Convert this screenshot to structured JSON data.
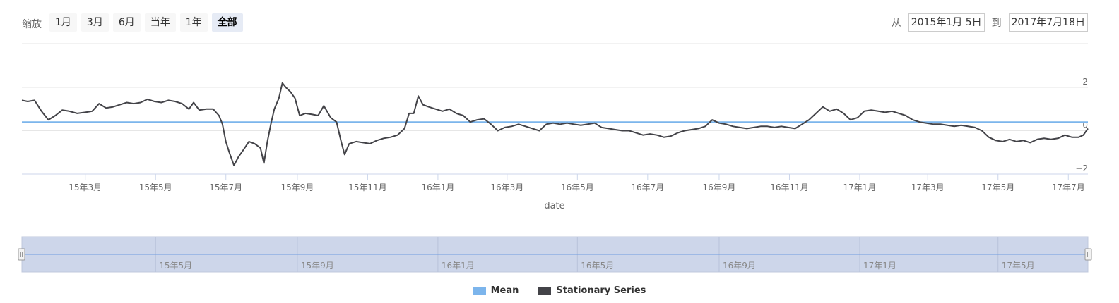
{
  "toolbar": {
    "zoom_label": "缩放",
    "zoom_buttons": [
      "1月",
      "3月",
      "6月",
      "当年",
      "1年",
      "全部"
    ],
    "active_zoom": "全部",
    "from_label": "从",
    "from_value": "2015年1月 5日",
    "to_label": "到",
    "to_value": "2017年7月18日"
  },
  "legend": {
    "mean_label": "Mean",
    "series_label": "Stationary Series"
  },
  "colors": {
    "mean": "#7cb5ec",
    "series": "#434348",
    "navigator_fill": "#cdd6ea",
    "navigator_line": "#6f9ce0"
  },
  "chart_data": {
    "type": "line",
    "xlabel": "date",
    "ylabel": "",
    "xlim": [
      "2015-01-05",
      "2017-07-18"
    ],
    "ylim": [
      -2,
      2
    ],
    "yticks": [
      2,
      0,
      -2
    ],
    "xticks": [
      {
        "date": "2015-03-01",
        "label": "15年3月"
      },
      {
        "date": "2015-05-01",
        "label": "15年5月"
      },
      {
        "date": "2015-07-01",
        "label": "15年7月"
      },
      {
        "date": "2015-09-01",
        "label": "15年9月"
      },
      {
        "date": "2015-11-01",
        "label": "15年11月"
      },
      {
        "date": "2016-01-01",
        "label": "16年1月"
      },
      {
        "date": "2016-03-01",
        "label": "16年3月"
      },
      {
        "date": "2016-05-01",
        "label": "16年5月"
      },
      {
        "date": "2016-07-01",
        "label": "16年7月"
      },
      {
        "date": "2016-09-01",
        "label": "16年9月"
      },
      {
        "date": "2016-11-01",
        "label": "16年11月"
      },
      {
        "date": "2017-01-01",
        "label": "17年1月"
      },
      {
        "date": "2017-03-01",
        "label": "17年3月"
      },
      {
        "date": "2017-05-01",
        "label": "17年5月"
      },
      {
        "date": "2017-07-01",
        "label": "17年7月"
      }
    ],
    "navigator_ticks": [
      {
        "date": "2015-05-01",
        "label": "15年5月"
      },
      {
        "date": "2015-09-01",
        "label": "15年9月"
      },
      {
        "date": "2016-01-01",
        "label": "16年1月"
      },
      {
        "date": "2016-05-01",
        "label": "16年5月"
      },
      {
        "date": "2016-09-01",
        "label": "16年9月"
      },
      {
        "date": "2017-01-01",
        "label": "17年1月"
      },
      {
        "date": "2017-05-01",
        "label": "17年5月"
      }
    ],
    "series": [
      {
        "name": "Mean",
        "values": [
          {
            "x": "2015-01-05",
            "y": 0.4
          },
          {
            "x": "2017-07-18",
            "y": 0.4
          }
        ]
      },
      {
        "name": "Stationary Series",
        "values": [
          {
            "x": "2015-01-05",
            "y": 1.4
          },
          {
            "x": "2015-01-10",
            "y": 1.35
          },
          {
            "x": "2015-01-16",
            "y": 1.4
          },
          {
            "x": "2015-01-22",
            "y": 0.9
          },
          {
            "x": "2015-01-28",
            "y": 0.5
          },
          {
            "x": "2015-02-03",
            "y": 0.7
          },
          {
            "x": "2015-02-09",
            "y": 0.95
          },
          {
            "x": "2015-02-15",
            "y": 0.9
          },
          {
            "x": "2015-02-22",
            "y": 0.8
          },
          {
            "x": "2015-03-01",
            "y": 0.85
          },
          {
            "x": "2015-03-07",
            "y": 0.9
          },
          {
            "x": "2015-03-13",
            "y": 1.25
          },
          {
            "x": "2015-03-19",
            "y": 1.05
          },
          {
            "x": "2015-03-25",
            "y": 1.1
          },
          {
            "x": "2015-03-31",
            "y": 1.2
          },
          {
            "x": "2015-04-06",
            "y": 1.3
          },
          {
            "x": "2015-04-12",
            "y": 1.25
          },
          {
            "x": "2015-04-18",
            "y": 1.3
          },
          {
            "x": "2015-04-24",
            "y": 1.45
          },
          {
            "x": "2015-04-30",
            "y": 1.35
          },
          {
            "x": "2015-05-06",
            "y": 1.3
          },
          {
            "x": "2015-05-12",
            "y": 1.4
          },
          {
            "x": "2015-05-18",
            "y": 1.35
          },
          {
            "x": "2015-05-24",
            "y": 1.25
          },
          {
            "x": "2015-05-30",
            "y": 1.0
          },
          {
            "x": "2015-06-03",
            "y": 1.3
          },
          {
            "x": "2015-06-08",
            "y": 0.95
          },
          {
            "x": "2015-06-14",
            "y": 1.0
          },
          {
            "x": "2015-06-20",
            "y": 1.0
          },
          {
            "x": "2015-06-25",
            "y": 0.7
          },
          {
            "x": "2015-06-28",
            "y": 0.3
          },
          {
            "x": "2015-07-01",
            "y": -0.5
          },
          {
            "x": "2015-07-04",
            "y": -1.0
          },
          {
            "x": "2015-07-08",
            "y": -1.6
          },
          {
            "x": "2015-07-12",
            "y": -1.2
          },
          {
            "x": "2015-07-16",
            "y": -0.9
          },
          {
            "x": "2015-07-21",
            "y": -0.5
          },
          {
            "x": "2015-07-26",
            "y": -0.6
          },
          {
            "x": "2015-07-31",
            "y": -0.8
          },
          {
            "x": "2015-08-03",
            "y": -1.5
          },
          {
            "x": "2015-08-06",
            "y": -0.5
          },
          {
            "x": "2015-08-09",
            "y": 0.3
          },
          {
            "x": "2015-08-12",
            "y": 1.0
          },
          {
            "x": "2015-08-16",
            "y": 1.5
          },
          {
            "x": "2015-08-19",
            "y": 2.2
          },
          {
            "x": "2015-08-22",
            "y": 2.0
          },
          {
            "x": "2015-08-26",
            "y": 1.8
          },
          {
            "x": "2015-08-30",
            "y": 1.5
          },
          {
            "x": "2015-09-03",
            "y": 0.7
          },
          {
            "x": "2015-09-08",
            "y": 0.8
          },
          {
            "x": "2015-09-14",
            "y": 0.75
          },
          {
            "x": "2015-09-19",
            "y": 0.7
          },
          {
            "x": "2015-09-24",
            "y": 1.15
          },
          {
            "x": "2015-09-30",
            "y": 0.6
          },
          {
            "x": "2015-10-05",
            "y": 0.4
          },
          {
            "x": "2015-10-09",
            "y": -0.5
          },
          {
            "x": "2015-10-12",
            "y": -1.1
          },
          {
            "x": "2015-10-16",
            "y": -0.6
          },
          {
            "x": "2015-10-22",
            "y": -0.5
          },
          {
            "x": "2015-10-28",
            "y": -0.55
          },
          {
            "x": "2015-11-03",
            "y": -0.6
          },
          {
            "x": "2015-11-09",
            "y": -0.45
          },
          {
            "x": "2015-11-15",
            "y": -0.35
          },
          {
            "x": "2015-11-21",
            "y": -0.3
          },
          {
            "x": "2015-11-27",
            "y": -0.2
          },
          {
            "x": "2015-12-03",
            "y": 0.1
          },
          {
            "x": "2015-12-07",
            "y": 0.8
          },
          {
            "x": "2015-12-11",
            "y": 0.8
          },
          {
            "x": "2015-12-15",
            "y": 1.6
          },
          {
            "x": "2015-12-19",
            "y": 1.2
          },
          {
            "x": "2015-12-24",
            "y": 1.1
          },
          {
            "x": "2015-12-30",
            "y": 1.0
          },
          {
            "x": "2016-01-05",
            "y": 0.9
          },
          {
            "x": "2016-01-11",
            "y": 1.0
          },
          {
            "x": "2016-01-17",
            "y": 0.8
          },
          {
            "x": "2016-01-23",
            "y": 0.7
          },
          {
            "x": "2016-01-29",
            "y": 0.4
          },
          {
            "x": "2016-02-04",
            "y": 0.5
          },
          {
            "x": "2016-02-10",
            "y": 0.55
          },
          {
            "x": "2016-02-16",
            "y": 0.3
          },
          {
            "x": "2016-02-22",
            "y": 0.0
          },
          {
            "x": "2016-02-28",
            "y": 0.15
          },
          {
            "x": "2016-03-05",
            "y": 0.2
          },
          {
            "x": "2016-03-11",
            "y": 0.3
          },
          {
            "x": "2016-03-17",
            "y": 0.2
          },
          {
            "x": "2016-03-23",
            "y": 0.1
          },
          {
            "x": "2016-03-29",
            "y": 0.0
          },
          {
            "x": "2016-04-04",
            "y": 0.3
          },
          {
            "x": "2016-04-10",
            "y": 0.35
          },
          {
            "x": "2016-04-16",
            "y": 0.3
          },
          {
            "x": "2016-04-22",
            "y": 0.35
          },
          {
            "x": "2016-04-28",
            "y": 0.3
          },
          {
            "x": "2016-05-04",
            "y": 0.25
          },
          {
            "x": "2016-05-10",
            "y": 0.3
          },
          {
            "x": "2016-05-16",
            "y": 0.35
          },
          {
            "x": "2016-05-22",
            "y": 0.15
          },
          {
            "x": "2016-05-28",
            "y": 0.1
          },
          {
            "x": "2016-06-03",
            "y": 0.05
          },
          {
            "x": "2016-06-09",
            "y": 0.0
          },
          {
            "x": "2016-06-15",
            "y": 0.0
          },
          {
            "x": "2016-06-21",
            "y": -0.1
          },
          {
            "x": "2016-06-27",
            "y": -0.2
          },
          {
            "x": "2016-07-03",
            "y": -0.15
          },
          {
            "x": "2016-07-09",
            "y": -0.2
          },
          {
            "x": "2016-07-15",
            "y": -0.3
          },
          {
            "x": "2016-07-21",
            "y": -0.25
          },
          {
            "x": "2016-07-27",
            "y": -0.1
          },
          {
            "x": "2016-08-02",
            "y": 0.0
          },
          {
            "x": "2016-08-08",
            "y": 0.05
          },
          {
            "x": "2016-08-14",
            "y": 0.1
          },
          {
            "x": "2016-08-20",
            "y": 0.2
          },
          {
            "x": "2016-08-26",
            "y": 0.5
          },
          {
            "x": "2016-09-01",
            "y": 0.35
          },
          {
            "x": "2016-09-07",
            "y": 0.3
          },
          {
            "x": "2016-09-13",
            "y": 0.2
          },
          {
            "x": "2016-09-19",
            "y": 0.15
          },
          {
            "x": "2016-09-25",
            "y": 0.1
          },
          {
            "x": "2016-10-01",
            "y": 0.15
          },
          {
            "x": "2016-10-07",
            "y": 0.2
          },
          {
            "x": "2016-10-13",
            "y": 0.2
          },
          {
            "x": "2016-10-19",
            "y": 0.15
          },
          {
            "x": "2016-10-25",
            "y": 0.2
          },
          {
            "x": "2016-10-31",
            "y": 0.15
          },
          {
            "x": "2016-11-06",
            "y": 0.1
          },
          {
            "x": "2016-11-12",
            "y": 0.3
          },
          {
            "x": "2016-11-18",
            "y": 0.5
          },
          {
            "x": "2016-11-24",
            "y": 0.8
          },
          {
            "x": "2016-11-30",
            "y": 1.1
          },
          {
            "x": "2016-12-06",
            "y": 0.9
          },
          {
            "x": "2016-12-12",
            "y": 1.0
          },
          {
            "x": "2016-12-18",
            "y": 0.8
          },
          {
            "x": "2016-12-24",
            "y": 0.5
          },
          {
            "x": "2016-12-30",
            "y": 0.6
          },
          {
            "x": "2017-01-05",
            "y": 0.9
          },
          {
            "x": "2017-01-11",
            "y": 0.95
          },
          {
            "x": "2017-01-17",
            "y": 0.9
          },
          {
            "x": "2017-01-23",
            "y": 0.85
          },
          {
            "x": "2017-01-29",
            "y": 0.9
          },
          {
            "x": "2017-02-04",
            "y": 0.8
          },
          {
            "x": "2017-02-10",
            "y": 0.7
          },
          {
            "x": "2017-02-16",
            "y": 0.5
          },
          {
            "x": "2017-02-22",
            "y": 0.4
          },
          {
            "x": "2017-02-28",
            "y": 0.35
          },
          {
            "x": "2017-03-06",
            "y": 0.3
          },
          {
            "x": "2017-03-12",
            "y": 0.3
          },
          {
            "x": "2017-03-18",
            "y": 0.25
          },
          {
            "x": "2017-03-24",
            "y": 0.2
          },
          {
            "x": "2017-03-30",
            "y": 0.25
          },
          {
            "x": "2017-04-05",
            "y": 0.2
          },
          {
            "x": "2017-04-11",
            "y": 0.15
          },
          {
            "x": "2017-04-17",
            "y": 0.0
          },
          {
            "x": "2017-04-23",
            "y": -0.3
          },
          {
            "x": "2017-04-29",
            "y": -0.45
          },
          {
            "x": "2017-05-05",
            "y": -0.5
          },
          {
            "x": "2017-05-11",
            "y": -0.4
          },
          {
            "x": "2017-05-17",
            "y": -0.5
          },
          {
            "x": "2017-05-23",
            "y": -0.45
          },
          {
            "x": "2017-05-29",
            "y": -0.55
          },
          {
            "x": "2017-06-04",
            "y": -0.4
          },
          {
            "x": "2017-06-10",
            "y": -0.35
          },
          {
            "x": "2017-06-16",
            "y": -0.4
          },
          {
            "x": "2017-06-22",
            "y": -0.35
          },
          {
            "x": "2017-06-28",
            "y": -0.2
          },
          {
            "x": "2017-07-04",
            "y": -0.3
          },
          {
            "x": "2017-07-10",
            "y": -0.3
          },
          {
            "x": "2017-07-14",
            "y": -0.2
          },
          {
            "x": "2017-07-18",
            "y": 0.1
          }
        ]
      }
    ]
  }
}
